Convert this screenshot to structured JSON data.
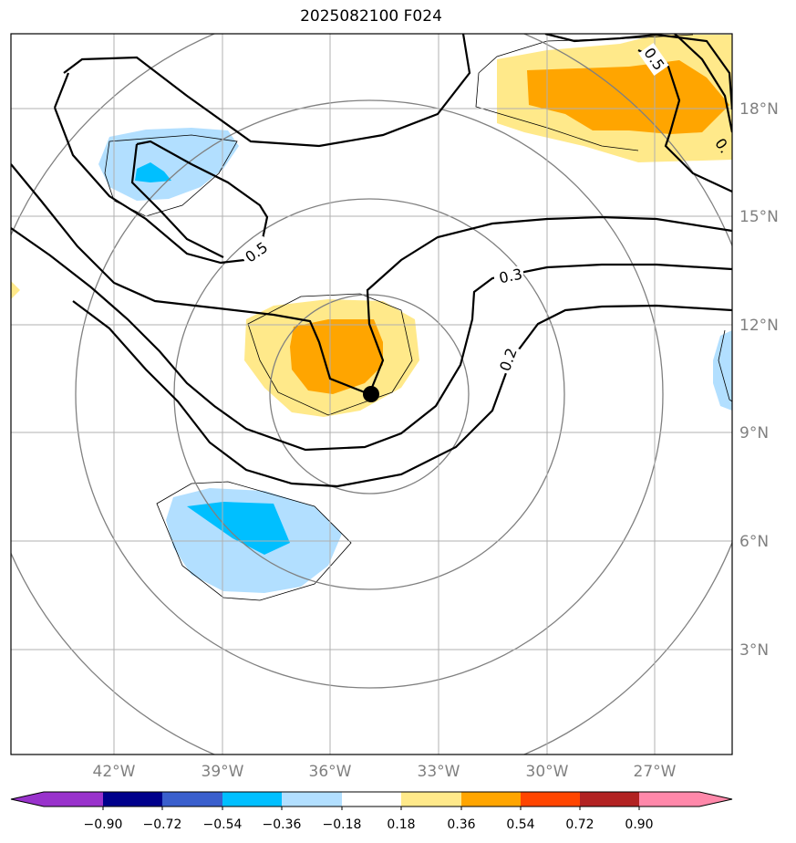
{
  "title": "2025082100 F024",
  "map": {
    "lon_labels": [
      "42°W",
      "39°W",
      "36°W",
      "33°W",
      "30°W",
      "27°W"
    ],
    "lat_labels": [
      "18°N",
      "15°N",
      "12°N",
      "9°N",
      "6°N",
      "3°N"
    ],
    "contour_labels": [
      "0.5",
      "0.3",
      "0.2",
      "0.5",
      "0."
    ],
    "storm_center": {
      "lon": -34.9,
      "lat": 10.1
    },
    "range_rings": "concentric circles around storm center"
  },
  "colorbar": {
    "ticks": [
      "−0.90",
      "−0.72",
      "−0.54",
      "−0.36",
      "−0.18",
      "0.18",
      "0.36",
      "0.54",
      "0.72",
      "0.90"
    ],
    "colors": [
      "#9932cc",
      "#00008b",
      "#3a5fcd",
      "#00bfff",
      "#b2dfff",
      "#ffffff",
      "#ffe98a",
      "#ffa500",
      "#ff4500",
      "#b22222",
      "#ff88aa"
    ]
  }
}
